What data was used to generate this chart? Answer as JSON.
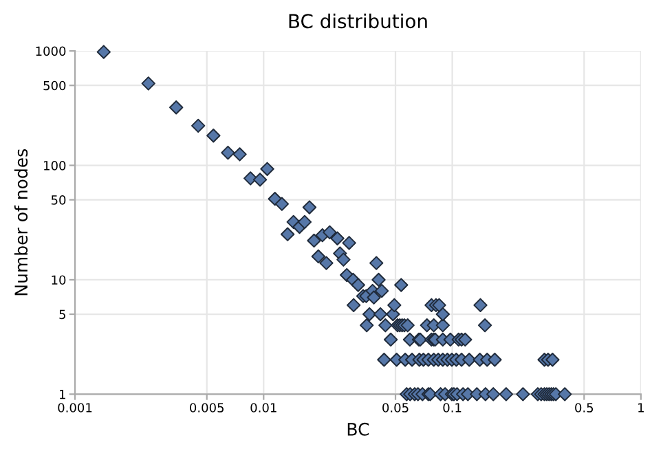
{
  "chart_data": {
    "type": "scatter",
    "title": "BC distribution",
    "xlabel": "BC",
    "ylabel": "Number of nodes",
    "log": "xy",
    "grid": true,
    "marker": "diamond",
    "legend": false,
    "xlim": [
      0.001,
      1
    ],
    "ylim": [
      1,
      1000
    ],
    "xticks": [
      0.001,
      0.005,
      0.01,
      0.05,
      0.1,
      0.5,
      1
    ],
    "yticks": [
      1,
      5,
      10,
      50,
      100,
      500,
      1000
    ],
    "series": [
      {
        "color": "#5677a8",
        "x": [
          0.00142,
          0.00245,
          0.00344,
          0.0045,
          0.00542,
          0.00647,
          0.00747,
          0.00852,
          0.00957,
          0.01045,
          0.01148,
          0.0125,
          0.0175,
          0.0144,
          0.0134,
          0.0155,
          0.0165,
          0.0185,
          0.0205,
          0.0224,
          0.0195,
          0.0215,
          0.0246,
          0.0284,
          0.0254,
          0.0265,
          0.0276,
          0.0298,
          0.0317,
          0.0396,
          0.0407,
          0.0337,
          0.035,
          0.0378,
          0.0423,
          0.0384,
          0.0536,
          0.03,
          0.0352,
          0.0442,
          0.0513,
          0.0527,
          0.0542,
          0.0557,
          0.058,
          0.0734,
          0.0798,
          0.0891,
          0.149,
          0.0364,
          0.0416,
          0.0485,
          0.0891,
          0.0493,
          0.0776,
          0.082,
          0.0852,
          0.141,
          0.0472,
          0.0596,
          0.0665,
          0.0676,
          0.0776,
          0.0798,
          0.0811,
          0.0891,
          0.0977,
          0.108,
          0.112,
          0.117,
          0.0435,
          0.0507,
          0.0563,
          0.0612,
          0.0669,
          0.0703,
          0.0747,
          0.0798,
          0.0843,
          0.0891,
          0.0942,
          0.0995,
          0.105,
          0.112,
          0.123,
          0.14,
          0.153,
          0.168,
          0.308,
          0.322,
          0.34,
          0.0573,
          0.0598,
          0.0632,
          0.0658,
          0.0695,
          0.0747,
          0.0764,
          0.0867,
          0.0916,
          0.0995,
          0.102,
          0.106,
          0.114,
          0.121,
          0.135,
          0.15,
          0.165,
          0.193,
          0.237,
          0.284,
          0.296,
          0.308,
          0.317,
          0.326,
          0.335,
          0.344,
          0.354,
          0.395
        ],
        "values": [
          980,
          520,
          321,
          222,
          182,
          129,
          125,
          77,
          75,
          93,
          51,
          46,
          43,
          32,
          25,
          29,
          32,
          22,
          24.5,
          26,
          16,
          14,
          23,
          21,
          17,
          15,
          11,
          10,
          9,
          14,
          10,
          7.2,
          7.2,
          8,
          8,
          7,
          9,
          6,
          4,
          4,
          4,
          4,
          4,
          4,
          4,
          4,
          4,
          4,
          4,
          5,
          5,
          5,
          5,
          6,
          6,
          6,
          6,
          6,
          3,
          3,
          3,
          3,
          3,
          3,
          3,
          3,
          3,
          3,
          3,
          3,
          2,
          2,
          2,
          2,
          2,
          2,
          2,
          2,
          2,
          2,
          2,
          2,
          2,
          2,
          2,
          2,
          2,
          2,
          2,
          2,
          2,
          1,
          1,
          1,
          1,
          1,
          1,
          1,
          1,
          1,
          1,
          1,
          1,
          1,
          1,
          1,
          1,
          1,
          1,
          1,
          1,
          1,
          1,
          1,
          1,
          1,
          1,
          1,
          1
        ]
      }
    ]
  }
}
